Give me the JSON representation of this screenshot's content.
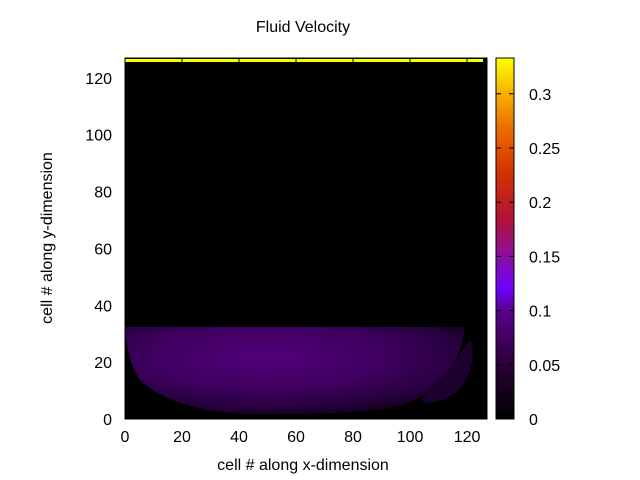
{
  "chart_data": {
    "type": "heatmap",
    "title": "Fluid Velocity",
    "xlabel": "cell # along x-dimension",
    "ylabel": "cell # along y-dimension",
    "xlim": [
      0,
      127
    ],
    "ylim": [
      0,
      127
    ],
    "xticks": [
      "0",
      "20",
      "40",
      "60",
      "80",
      "100",
      "120"
    ],
    "yticks": [
      "0",
      "20",
      "40",
      "60",
      "80",
      "100",
      "120"
    ],
    "colorbar": {
      "range": [
        0,
        0.333
      ],
      "ticks": [
        "0",
        "0.05",
        "0.1",
        "0.15",
        "0.2",
        "0.25",
        "0.3"
      ],
      "tick_values": [
        0,
        0.05,
        0.1,
        0.15,
        0.2,
        0.25,
        0.3
      ],
      "palette": "gnuplot-hot (black-purple-red-orange-yellow)"
    },
    "regions": [
      {
        "name": "lid",
        "y_cells": [
          125,
          126
        ],
        "velocity": 0.333
      },
      {
        "name": "lower-vortex",
        "x_cells": [
          0,
          120
        ],
        "y_cells": [
          2,
          31
        ],
        "peak_velocity": 0.1,
        "peak_center": [
          55,
          22
        ]
      },
      {
        "name": "corner-eddy",
        "x_cells": [
          104,
          122
        ],
        "y_cells": [
          5,
          27
        ],
        "velocity": 0.02
      },
      {
        "name": "upper-region",
        "y_cells": [
          31,
          124
        ],
        "velocity": 0
      }
    ]
  }
}
